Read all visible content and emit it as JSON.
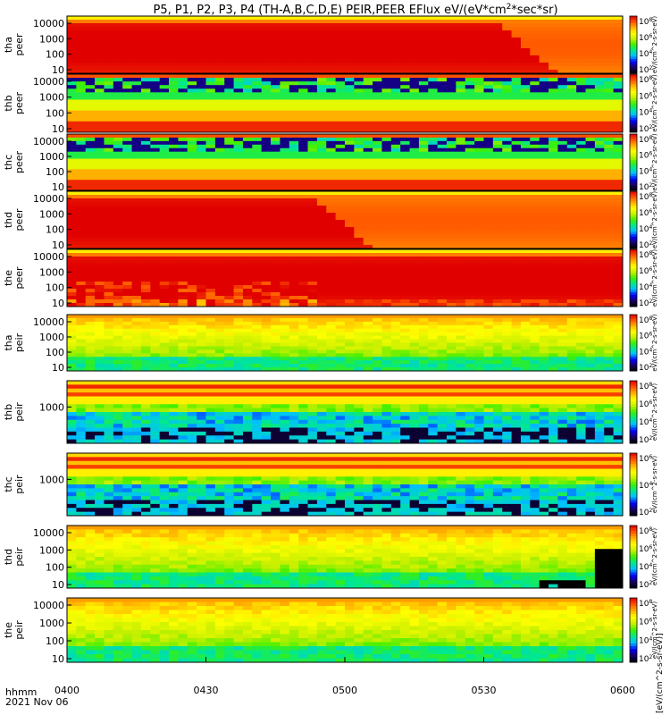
{
  "chart_data": {
    "type": "heatmap",
    "title": "P5, P1, P2, P3, P4 (TH-A,B,C,D,E) PEIR,PEER EFlux eV/(eV*cm^2*sec*sr)",
    "title_parts": {
      "main": "P5, P1, P2, P3, P4 (TH-A,B,C,D,E) PEIR,PEER EFlux eV/(eV*cm",
      "sup": "2",
      "tail": "*sec*sr)"
    },
    "colorbar_unit_label": "[eV/(cm^2-s-sr-eV)]",
    "x_ticks": [
      "0400",
      "0430",
      "0500",
      "0530",
      "0600"
    ],
    "x_stub": "hhmm",
    "x_date": "2021 Nov 06",
    "panels": [
      {
        "id": "tha-peer",
        "line1": "tha",
        "line2": "peer",
        "yticks": [
          "10000",
          "1000",
          "100",
          "10"
        ],
        "cbar": [
          "10",
          "10",
          "10",
          "10"
        ],
        "cbar_exp": [
          "8",
          "6",
          "4",
          "2"
        ],
        "cbar_unit": "eV/(cm^2-s-sr-eV)",
        "mode": "peer",
        "cutoff": 0.88
      },
      {
        "id": "thb-peer",
        "line1": "thb",
        "line2": "peer",
        "yticks": [
          "10000",
          "1000",
          "100",
          "10"
        ],
        "cbar": [
          "10",
          "10",
          "10",
          "10"
        ],
        "cbar_exp": [
          "8",
          "6",
          "4",
          "2"
        ],
        "cbar_unit": "eV/(cm^2-s-sr-eV)",
        "mode": "peer-noisy"
      },
      {
        "id": "thc-peer",
        "line1": "thc",
        "line2": "peer",
        "yticks": [
          "10000",
          "1000",
          "100",
          "10"
        ],
        "cbar": [
          "10",
          "10",
          "10",
          "10"
        ],
        "cbar_exp": [
          "8",
          "6",
          "4",
          "2"
        ],
        "cbar_unit": "eV/(cm^2-s-sr-eV)",
        "mode": "peer-noisy"
      },
      {
        "id": "thd-peer",
        "line1": "thd",
        "line2": "peer",
        "yticks": [
          "10000",
          "1000",
          "100",
          "10"
        ],
        "cbar": [
          "10",
          "10",
          "10",
          "10"
        ],
        "cbar_exp": [
          "8",
          "6",
          "4",
          "2"
        ],
        "cbar_unit": "eV/(cm^2-s-sr-eV)",
        "mode": "peer",
        "cutoff": 0.55
      },
      {
        "id": "the-peer",
        "line1": "the",
        "line2": "peer",
        "yticks": [
          "10000",
          "1000",
          "100",
          "10"
        ],
        "cbar": [
          "10",
          "10",
          "10",
          "10"
        ],
        "cbar_exp": [
          "8",
          "6",
          "4",
          "2"
        ],
        "cbar_unit": "eV/(cm^2-s-sr-eV)",
        "mode": "peer-strong"
      },
      {
        "id": "tha-peir",
        "line1": "tha",
        "line2": "peir",
        "yticks": [
          "10000",
          "1000",
          "100",
          "10"
        ],
        "cbar": [
          "10",
          "10",
          "10",
          "10"
        ],
        "cbar_exp": [
          "8",
          "6",
          "4",
          "2"
        ],
        "cbar_unit": "eV/(cm^2-s-sr-eV)",
        "mode": "peir"
      },
      {
        "id": "thb-peir",
        "line1": "thb",
        "line2": "peir",
        "yticks": [
          "1000"
        ],
        "cbar": [
          "10",
          "10",
          "10",
          "10"
        ],
        "cbar_exp": [
          "8",
          "6",
          "4",
          "2"
        ],
        "cbar_unit": "eV/(cm^2-s-sr-eV)",
        "mode": "peir-band"
      },
      {
        "id": "thc-peir",
        "line1": "thc",
        "line2": "peir",
        "yticks": [
          "1000"
        ],
        "cbar": [
          "10",
          "10",
          "10"
        ],
        "cbar_exp": [
          "6",
          "4",
          "2"
        ],
        "cbar_unit": "eV/(cm^2-s-sr-eV)",
        "mode": "peir-band"
      },
      {
        "id": "thd-peir",
        "line1": "thd",
        "line2": "peir",
        "yticks": [
          "10000",
          "1000",
          "100",
          "10"
        ],
        "cbar": [
          "10",
          "10",
          "10",
          "10"
        ],
        "cbar_exp": [
          "8",
          "6",
          "4",
          "2"
        ],
        "cbar_unit": "eV/(cm^2-s-sr-eV)",
        "mode": "peir-dropout"
      },
      {
        "id": "the-peir",
        "line1": "the",
        "line2": "peir",
        "yticks": [
          "10000",
          "1000",
          "100",
          "10"
        ],
        "cbar": [
          "10",
          "10",
          "10",
          "10"
        ],
        "cbar_exp": [
          "8",
          "6",
          "4",
          "2"
        ],
        "cbar_unit": "eV/(cm^2-s-sr-eV)",
        "mode": "peir"
      }
    ]
  },
  "colors": {
    "scale": [
      "#000000",
      "#1a0066",
      "#0000ff",
      "#00c0ff",
      "#00e890",
      "#40f000",
      "#c8f000",
      "#ffff00",
      "#ffb000",
      "#ff5000",
      "#e00000"
    ]
  }
}
